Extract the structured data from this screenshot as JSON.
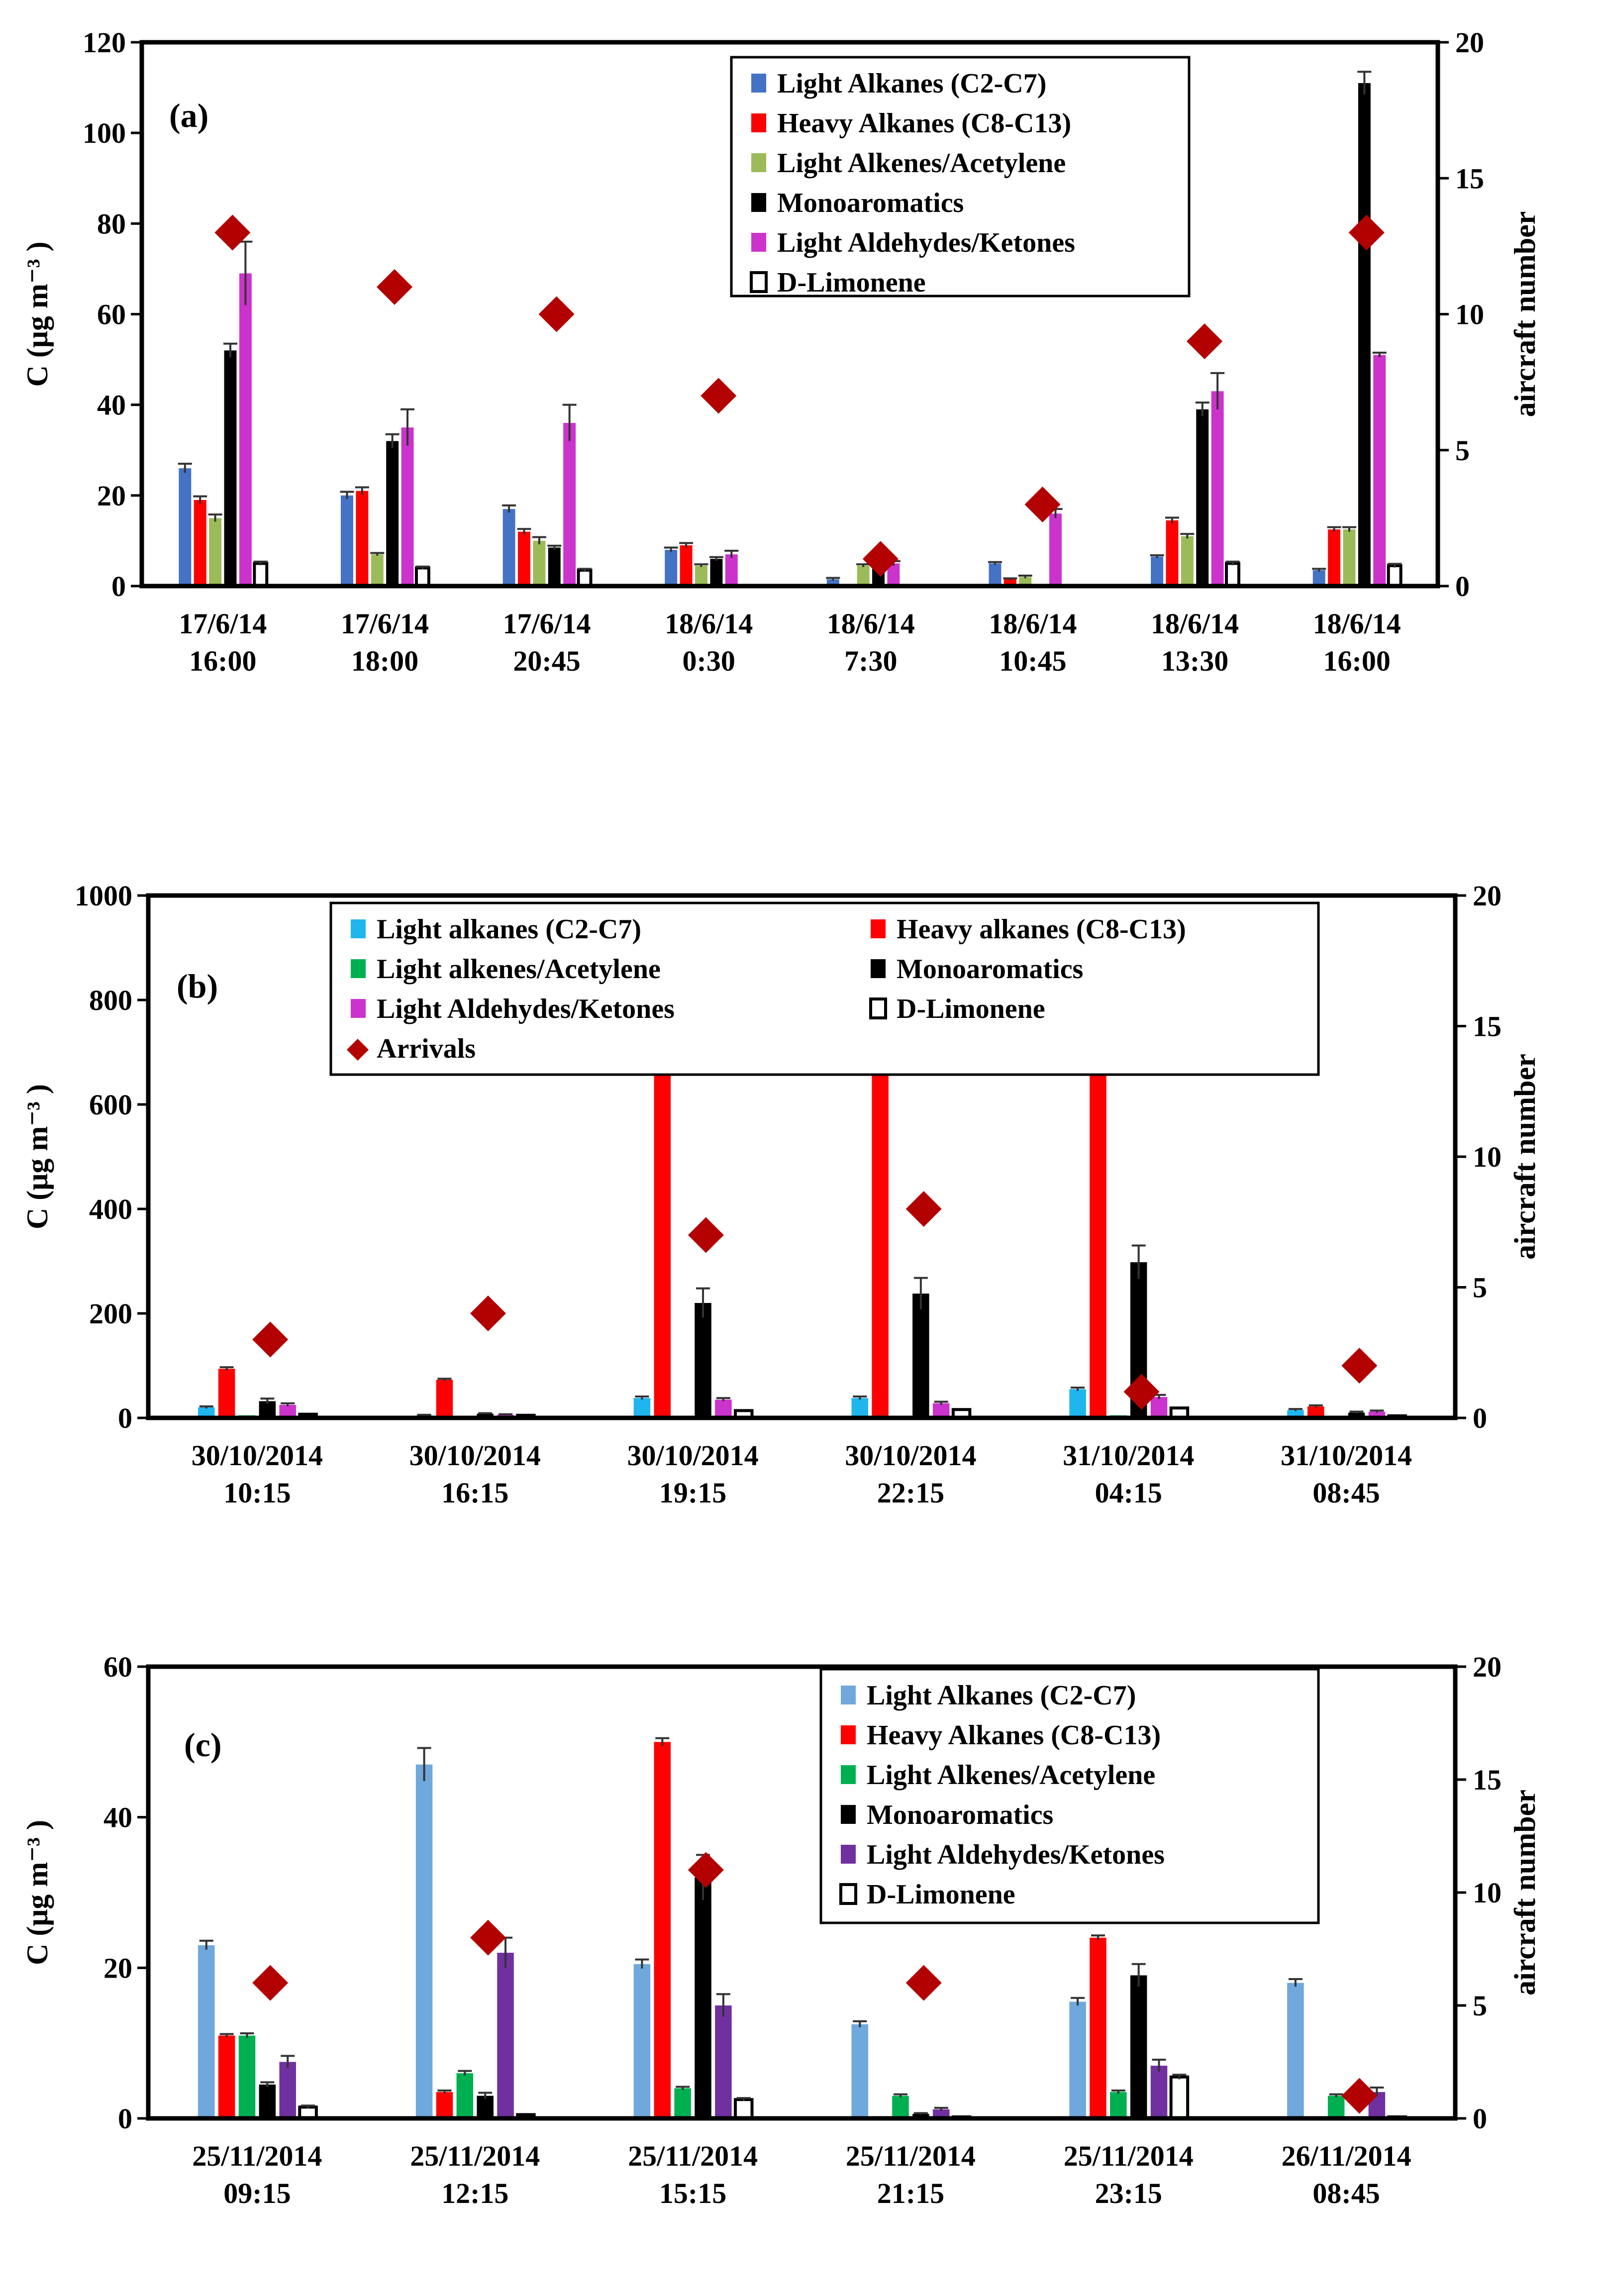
{
  "colors": {
    "light_alkanes_a": "#4472C4",
    "heavy_alkanes": "#FF0000",
    "light_alkenes_a": "#9BBB59",
    "monoaromatics": "#000000",
    "aldehydes_a": "#CC33CC",
    "limonene": "#FFFFFF",
    "arrivals": "#B30000",
    "light_alkanes_b": "#1FB6EE",
    "light_alkenes_b": "#00B050",
    "aldehydes_b": "#CC33CC",
    "light_alkanes_c": "#6FA8DC",
    "light_alkenes_c": "#00B050",
    "aldehydes_c": "#7030A0"
  },
  "chart_data": [
    {
      "type": "bar",
      "panel_label": "(a)",
      "ylabel": "C (μg m⁻³ )",
      "y2label": "aircraft number",
      "ylim": [
        0,
        120
      ],
      "yticks": [
        0,
        20,
        40,
        60,
        80,
        100,
        120
      ],
      "y2lim": [
        0,
        20
      ],
      "y2ticks": [
        0,
        5,
        10,
        15,
        20
      ],
      "categories": [
        [
          "17/6/14",
          "16:00"
        ],
        [
          "17/6/14",
          "18:00"
        ],
        [
          "17/6/14",
          "20:45"
        ],
        [
          "18/6/14",
          "0:30"
        ],
        [
          "18/6/14",
          "7:30"
        ],
        [
          "18/6/14",
          "10:45"
        ],
        [
          "18/6/14",
          "13:30"
        ],
        [
          "18/6/14",
          "16:00"
        ]
      ],
      "legend": {
        "placement": "top-right",
        "columns": 1
      },
      "series": [
        {
          "name": "Light Alkanes (C2-C7)",
          "color_key": "light_alkanes_a",
          "values": [
            26,
            20,
            17,
            8,
            1.5,
            5,
            6.5,
            3.5
          ],
          "errors": [
            1,
            0.8,
            0.8,
            0.5,
            0.3,
            0.3,
            0.3,
            0.3
          ]
        },
        {
          "name": "Heavy Alkanes (C8-C13)",
          "color_key": "heavy_alkanes",
          "values": [
            19,
            21,
            12,
            9,
            0,
            1.5,
            14.5,
            12.5
          ],
          "errors": [
            0.8,
            0.8,
            0.6,
            0.5,
            0,
            0.2,
            0.6,
            0.5
          ]
        },
        {
          "name": "Light Alkenes/Acetylene",
          "color_key": "light_alkenes_a",
          "values": [
            15,
            7,
            10,
            4.5,
            4.5,
            2,
            11,
            12.5
          ],
          "errors": [
            0.8,
            0.3,
            0.8,
            0.3,
            0.3,
            0.3,
            0.5,
            0.5
          ]
        },
        {
          "name": "Monoaromatics",
          "color_key": "monoaromatics",
          "values": [
            52,
            32,
            8.5,
            6,
            6.5,
            0,
            39,
            111
          ],
          "errors": [
            1.5,
            1.5,
            0.4,
            0.4,
            0.4,
            0,
            1.5,
            2.5
          ]
        },
        {
          "name": "Light Aldehydes/Ketones",
          "color_key": "aldehydes_a",
          "values": [
            69,
            35,
            36,
            7,
            5,
            16,
            43,
            51
          ],
          "errors": [
            7,
            4,
            4,
            0.8,
            0.5,
            1,
            4,
            0.5
          ]
        },
        {
          "name": "D-Limonene",
          "color_key": "limonene",
          "values": [
            5,
            4,
            3.5,
            0,
            0,
            0,
            5,
            4.5
          ],
          "errors": [
            0.4,
            0.3,
            0.3,
            0,
            0,
            0,
            0.4,
            0.4
          ]
        }
      ],
      "arrivals": {
        "name": "",
        "axis": "y2",
        "values": [
          13,
          11,
          10,
          7,
          1,
          3,
          9,
          13
        ]
      }
    },
    {
      "type": "bar",
      "panel_label": "(b)",
      "ylabel": "C (μg m⁻³ )",
      "y2label": "aircraft number",
      "ylim": [
        0,
        1000
      ],
      "yticks": [
        0,
        200,
        400,
        600,
        800,
        1000
      ],
      "y2lim": [
        0,
        20
      ],
      "y2ticks": [
        0,
        5,
        10,
        15,
        20
      ],
      "categories": [
        [
          "30/10/2014",
          "10:15"
        ],
        [
          "30/10/2014",
          "16:15"
        ],
        [
          "30/10/2014",
          "19:15"
        ],
        [
          "30/10/2014",
          "22:15"
        ],
        [
          "31/10/2014",
          "04:15"
        ],
        [
          "31/10/2014",
          "08:45"
        ]
      ],
      "legend": {
        "placement": "top-center",
        "columns": 2
      },
      "series": [
        {
          "name": "Light alkanes (C2-C7)",
          "color_key": "light_alkanes_b",
          "values": [
            20,
            5,
            38,
            38,
            55,
            15
          ],
          "errors": [
            2,
            1,
            3,
            3,
            3,
            2
          ]
        },
        {
          "name": "Heavy alkanes (C8-C13)",
          "color_key": "heavy_alkanes",
          "values": [
            94,
            73,
            690,
            748,
            812,
            22
          ],
          "errors": [
            3,
            2,
            4,
            5,
            5,
            2
          ]
        },
        {
          "name": "Light alkenes/Acetylene",
          "color_key": "light_alkenes_b",
          "values": [
            5,
            3,
            4,
            4,
            5,
            4
          ],
          "errors": [
            0,
            0,
            0,
            0,
            0,
            0
          ]
        },
        {
          "name": "Monoaromatics",
          "color_key": "monoaromatics",
          "values": [
            32,
            8,
            220,
            238,
            298,
            10
          ],
          "errors": [
            5,
            1,
            28,
            30,
            32,
            2
          ]
        },
        {
          "name": "Light Aldehydes/Ketones",
          "color_key": "aldehydes_b",
          "values": [
            25,
            6,
            35,
            28,
            40,
            12
          ],
          "errors": [
            3,
            1,
            3,
            3,
            4,
            2
          ]
        },
        {
          "name": "D-Limonene",
          "color_key": "limonene",
          "values": [
            7,
            5,
            14,
            16,
            19,
            4
          ],
          "errors": [
            0,
            0,
            0,
            0,
            0,
            0
          ]
        }
      ],
      "arrivals": {
        "name": "Arrivals",
        "axis": "y2",
        "values": [
          3,
          4,
          7,
          8,
          1,
          2
        ]
      }
    },
    {
      "type": "bar",
      "panel_label": "(c)",
      "ylabel": "C (μg m⁻³ )",
      "y2label": "aircraft number",
      "ylim": [
        0,
        60
      ],
      "yticks": [
        0,
        20,
        40,
        60
      ],
      "y2lim": [
        0,
        20
      ],
      "y2ticks": [
        0,
        5,
        10,
        15,
        20
      ],
      "categories": [
        [
          "25/11/2014",
          "09:15"
        ],
        [
          "25/11/2014",
          "12:15"
        ],
        [
          "25/11/2014",
          "15:15"
        ],
        [
          "25/11/2014",
          "21:15"
        ],
        [
          "25/11/2014",
          "23:15"
        ],
        [
          "26/11/2014",
          "08:45"
        ]
      ],
      "legend": {
        "placement": "top-right",
        "columns": 1
      },
      "series": [
        {
          "name": "Light Alkanes (C2-C7)",
          "color_key": "light_alkanes_c",
          "values": [
            23,
            47,
            20.5,
            12.5,
            15.5,
            18
          ],
          "errors": [
            0.6,
            2.2,
            0.6,
            0.4,
            0.5,
            0.5
          ]
        },
        {
          "name": "Heavy Alkanes (C8-C13)",
          "color_key": "heavy_alkanes",
          "values": [
            11,
            3.5,
            50,
            0.3,
            24,
            0
          ],
          "errors": [
            0.2,
            0.2,
            0.5,
            0,
            0.3,
            0
          ]
        },
        {
          "name": "Light Alkenes/Acetylene",
          "color_key": "light_alkenes_c",
          "values": [
            11,
            6,
            4,
            3,
            3.5,
            3
          ],
          "errors": [
            0.3,
            0.3,
            0.2,
            0.2,
            0.2,
            0.2
          ]
        },
        {
          "name": "Monoaromatics",
          "color_key": "monoaromatics",
          "values": [
            4.5,
            3,
            32,
            0.6,
            19,
            0.2
          ],
          "errors": [
            0.3,
            0.4,
            3,
            0.1,
            1.5,
            0
          ]
        },
        {
          "name": "Light Aldehydes/Ketones",
          "color_key": "aldehydes_c",
          "values": [
            7.5,
            22,
            15,
            1.2,
            7,
            3.5
          ],
          "errors": [
            0.8,
            2,
            1.5,
            0.2,
            0.8,
            0.6
          ]
        },
        {
          "name": "D-Limonene",
          "color_key": "limonene",
          "values": [
            1.5,
            0.5,
            2.5,
            0.2,
            5.5,
            0.2
          ],
          "errors": [
            0.2,
            0,
            0.2,
            0,
            0.3,
            0
          ]
        }
      ],
      "arrivals": {
        "name": "",
        "axis": "y2",
        "values": [
          6,
          8,
          11,
          6,
          11,
          1
        ]
      }
    }
  ]
}
